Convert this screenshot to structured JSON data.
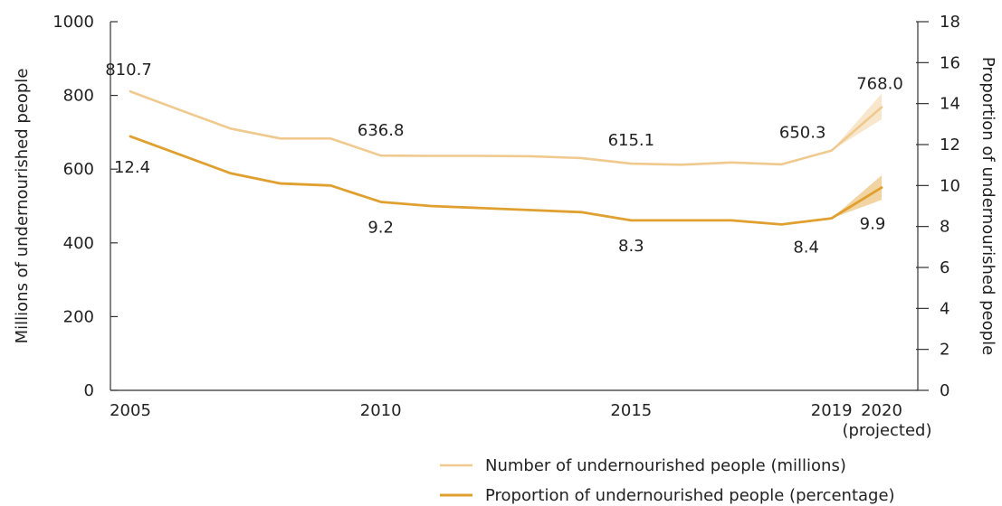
{
  "chart_data": {
    "type": "line",
    "y_left_label": "Millions of undernourished people",
    "y_right_label": "Proportion of undernourished people",
    "y_left_lim": [
      0,
      1000
    ],
    "y_left_ticks": [
      "0",
      "200",
      "400",
      "600",
      "800",
      "1000"
    ],
    "y_right_lim": [
      0,
      18
    ],
    "y_right_ticks": [
      "0",
      "2",
      "4",
      "6",
      "8",
      "10",
      "12",
      "14",
      "16",
      "18"
    ],
    "x_lim": [
      2005,
      2020
    ],
    "x_ticks": [
      {
        "value": 2005,
        "label": "2005",
        "sub": ""
      },
      {
        "value": 2010,
        "label": "2010",
        "sub": ""
      },
      {
        "value": 2015,
        "label": "2015",
        "sub": ""
      },
      {
        "value": 2019,
        "label": "2019",
        "sub": ""
      },
      {
        "value": 2020,
        "label": "2020",
        "sub": "(projected)"
      }
    ],
    "grid": false,
    "legend_position": "bottom-right",
    "series": [
      {
        "name": "Number of undernourished people (millions)",
        "axis": "left",
        "color": "#f0c98f",
        "x": [
          2005,
          2006,
          2007,
          2008,
          2009,
          2010,
          2011,
          2012,
          2013,
          2014,
          2015,
          2016,
          2017,
          2018,
          2019,
          2020
        ],
        "y": [
          810.7,
          760,
          710,
          683,
          683,
          636.8,
          636,
          636,
          635,
          630,
          615.1,
          612,
          618,
          613,
          650.3,
          768.0
        ],
        "band_low_2020": 735,
        "band_high_2020": 805
      },
      {
        "name": "Proportion of undernourished people (percentage)",
        "axis": "right",
        "color": "#e0a030",
        "x": [
          2005,
          2006,
          2007,
          2008,
          2009,
          2010,
          2011,
          2012,
          2013,
          2014,
          2015,
          2016,
          2017,
          2018,
          2019,
          2020
        ],
        "y": [
          12.4,
          11.5,
          10.6,
          10.1,
          10.0,
          9.2,
          9.0,
          8.9,
          8.8,
          8.7,
          8.3,
          8.3,
          8.3,
          8.1,
          8.4,
          9.9
        ],
        "band_low_2020": 9.3,
        "band_high_2020": 10.5
      }
    ],
    "annotations": [
      {
        "text": "810.7",
        "x": 2005,
        "series": 0,
        "pos": "above"
      },
      {
        "text": "636.8",
        "x": 2010,
        "series": 0,
        "pos": "above"
      },
      {
        "text": "615.1",
        "x": 2015,
        "series": 0,
        "pos": "above"
      },
      {
        "text": "650.3",
        "x": 2019,
        "series": 0,
        "pos": "above-left"
      },
      {
        "text": "768.0",
        "x": 2020,
        "series": 0,
        "pos": "above"
      },
      {
        "text": "12.4",
        "x": 2005,
        "series": 1,
        "pos": "below"
      },
      {
        "text": "9.2",
        "x": 2010,
        "series": 1,
        "pos": "below"
      },
      {
        "text": "8.3",
        "x": 2015,
        "series": 1,
        "pos": "below"
      },
      {
        "text": "8.4",
        "x": 2019,
        "series": 1,
        "pos": "below-left"
      },
      {
        "text": "9.9",
        "x": 2020,
        "series": 1,
        "pos": "below"
      }
    ]
  }
}
